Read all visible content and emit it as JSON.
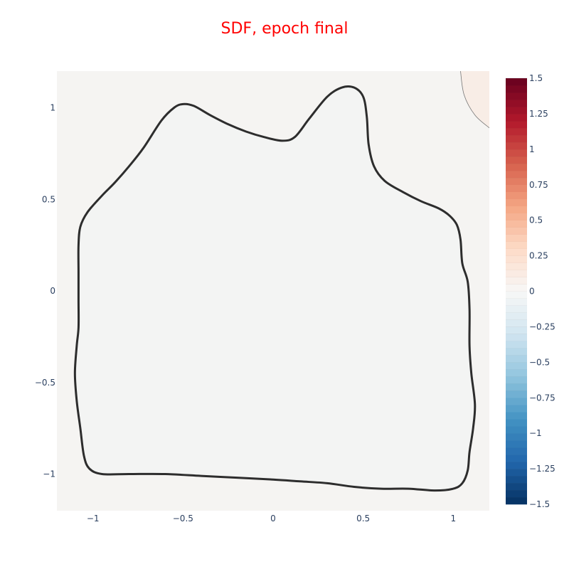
{
  "chart_data": {
    "type": "contour",
    "title": "SDF, epoch final",
    "xlabel": "",
    "ylabel": "",
    "xlim": [
      -1.2,
      1.2
    ],
    "ylim": [
      -1.2,
      1.2
    ],
    "x_ticks": [
      {
        "value": -1,
        "label": "−1"
      },
      {
        "value": -0.5,
        "label": "−0.5"
      },
      {
        "value": 0,
        "label": "0"
      },
      {
        "value": 0.5,
        "label": "0.5"
      },
      {
        "value": 1,
        "label": "1"
      }
    ],
    "y_ticks": [
      {
        "value": -1,
        "label": "−1"
      },
      {
        "value": -0.5,
        "label": "−0.5"
      },
      {
        "value": 0,
        "label": "0"
      },
      {
        "value": 0.5,
        "label": "0.5"
      },
      {
        "value": 1,
        "label": "1"
      }
    ],
    "grid": false,
    "zero_level_contour": [
      [
        -1.08,
        0.25
      ],
      [
        -1.07,
        0.35
      ],
      [
        -1.03,
        0.43
      ],
      [
        -0.95,
        0.52
      ],
      [
        -0.88,
        0.59
      ],
      [
        -0.8,
        0.68
      ],
      [
        -0.72,
        0.78
      ],
      [
        -0.62,
        0.93
      ],
      [
        -0.55,
        1.0
      ],
      [
        -0.5,
        1.02
      ],
      [
        -0.44,
        1.01
      ],
      [
        -0.35,
        0.96
      ],
      [
        -0.25,
        0.91
      ],
      [
        -0.15,
        0.87
      ],
      [
        -0.05,
        0.84
      ],
      [
        0.05,
        0.82
      ],
      [
        0.12,
        0.84
      ],
      [
        0.2,
        0.94
      ],
      [
        0.3,
        1.06
      ],
      [
        0.38,
        1.11
      ],
      [
        0.45,
        1.11
      ],
      [
        0.5,
        1.06
      ],
      [
        0.52,
        0.95
      ],
      [
        0.53,
        0.8
      ],
      [
        0.56,
        0.68
      ],
      [
        0.62,
        0.6
      ],
      [
        0.72,
        0.54
      ],
      [
        0.82,
        0.49
      ],
      [
        0.92,
        0.45
      ],
      [
        0.98,
        0.41
      ],
      [
        1.02,
        0.36
      ],
      [
        1.04,
        0.28
      ],
      [
        1.05,
        0.15
      ],
      [
        1.08,
        0.05
      ],
      [
        1.09,
        -0.1
      ],
      [
        1.09,
        -0.3
      ],
      [
        1.1,
        -0.45
      ],
      [
        1.12,
        -0.62
      ],
      [
        1.11,
        -0.75
      ],
      [
        1.09,
        -0.88
      ],
      [
        1.08,
        -0.98
      ],
      [
        1.05,
        -1.05
      ],
      [
        1.0,
        -1.08
      ],
      [
        0.9,
        -1.09
      ],
      [
        0.75,
        -1.08
      ],
      [
        0.6,
        -1.08
      ],
      [
        0.45,
        -1.07
      ],
      [
        0.3,
        -1.05
      ],
      [
        0.15,
        -1.04
      ],
      [
        0.0,
        -1.03
      ],
      [
        -0.2,
        -1.02
      ],
      [
        -0.4,
        -1.01
      ],
      [
        -0.6,
        -1.0
      ],
      [
        -0.8,
        -1.0
      ],
      [
        -0.95,
        -1.0
      ],
      [
        -1.02,
        -0.97
      ],
      [
        -1.05,
        -0.9
      ],
      [
        -1.07,
        -0.75
      ],
      [
        -1.09,
        -0.6
      ],
      [
        -1.1,
        -0.45
      ],
      [
        -1.09,
        -0.3
      ],
      [
        -1.08,
        -0.2
      ],
      [
        -1.08,
        -0.05
      ],
      [
        -1.08,
        0.1
      ],
      [
        -1.08,
        0.25
      ]
    ],
    "corner_contour": [
      [
        1.04,
        1.2
      ],
      [
        1.06,
        1.07
      ],
      [
        1.12,
        0.96
      ],
      [
        1.2,
        0.89
      ]
    ],
    "colorbar": {
      "range": [
        -1.5,
        1.5
      ],
      "ticks": [
        {
          "value": 1.5,
          "label": "1.5"
        },
        {
          "value": 1.25,
          "label": "1.25"
        },
        {
          "value": 1,
          "label": "1"
        },
        {
          "value": 0.75,
          "label": "0.75"
        },
        {
          "value": 0.5,
          "label": "0.5"
        },
        {
          "value": 0.25,
          "label": "0.25"
        },
        {
          "value": 0,
          "label": "0"
        },
        {
          "value": -0.25,
          "label": "−0.25"
        },
        {
          "value": -0.5,
          "label": "−0.5"
        },
        {
          "value": -0.75,
          "label": "−0.75"
        },
        {
          "value": -1,
          "label": "−1"
        },
        {
          "value": -1.25,
          "label": "−1.25"
        },
        {
          "value": -1.5,
          "label": "−1.5"
        }
      ],
      "colorscale": [
        [
          0.0,
          "#053061"
        ],
        [
          0.1,
          "#2166ac"
        ],
        [
          0.2,
          "#4393c3"
        ],
        [
          0.3,
          "#92c5de"
        ],
        [
          0.4,
          "#d1e5f0"
        ],
        [
          0.5,
          "#f7f7f7"
        ],
        [
          0.6,
          "#fddbc7"
        ],
        [
          0.7,
          "#f4a582"
        ],
        [
          0.8,
          "#d6604d"
        ],
        [
          0.9,
          "#b2182b"
        ],
        [
          1.0,
          "#67001f"
        ]
      ]
    },
    "colors": {
      "title": "#ff0000",
      "tick_text": "#2a3f5f",
      "background": "#f5f4f2",
      "inside_fill": "#f3f4f3",
      "corner_fill": "#f8ede6",
      "contour_line": "#2d2d2d"
    }
  }
}
